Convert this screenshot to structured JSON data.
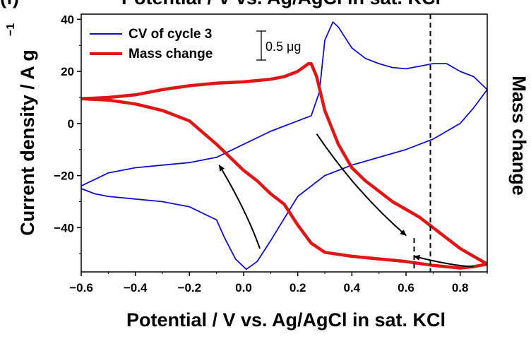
{
  "panel": {
    "label": "(f)",
    "top_title": "Potential / V vs. Ag/AgCl in sat. KCl"
  },
  "chart_data": {
    "type": "line",
    "xlabel": "Potential / V vs. Ag/AgCl in sat. KCl",
    "ylabel": "Current density / A g",
    "ylabel_superscript": "−1",
    "y2label": "Mass change",
    "xlim": [
      -0.6,
      0.9
    ],
    "ylim": [
      -57,
      42
    ],
    "xticks": [
      -0.6,
      -0.4,
      -0.2,
      0.0,
      0.2,
      0.4,
      0.6,
      0.8
    ],
    "xtick_labels": [
      "−0.6",
      "−0.4",
      "−0.2",
      "0.0",
      "0.2",
      "0.4",
      "0.6",
      "0.8"
    ],
    "yticks": [
      -40,
      -20,
      0,
      20,
      40
    ],
    "ytick_labels": [
      "−40",
      "−20",
      "0",
      "20",
      "40"
    ],
    "scale_bar_label": "0.5 μg",
    "legend_position": "top-left",
    "series": [
      {
        "name": "CV of cycle 3",
        "color": "#1010c8",
        "x": [
          -0.6,
          -0.5,
          -0.4,
          -0.3,
          -0.2,
          -0.1,
          0.0,
          0.1,
          0.15,
          0.2,
          0.25,
          0.28,
          0.3,
          0.33,
          0.35,
          0.4,
          0.45,
          0.5,
          0.55,
          0.6,
          0.65,
          0.7,
          0.75,
          0.8,
          0.85,
          0.9,
          0.85,
          0.8,
          0.75,
          0.7,
          0.65,
          0.6,
          0.5,
          0.4,
          0.3,
          0.2,
          0.1,
          0.05,
          0.01,
          -0.03,
          -0.07,
          -0.1,
          -0.2,
          -0.3,
          -0.4,
          -0.5,
          -0.55,
          -0.6
        ],
        "y": [
          -24,
          -19,
          -17,
          -16,
          -15,
          -13,
          -8,
          -3,
          -1,
          1,
          3,
          12,
          32,
          39,
          37,
          29,
          25,
          23,
          21.5,
          21,
          22,
          23,
          23,
          20,
          18,
          13,
          6,
          0,
          -3,
          -6,
          -8,
          -10,
          -13,
          -16,
          -20,
          -28,
          -45,
          -53,
          -56,
          -52,
          -44,
          -37,
          -32,
          -30,
          -29,
          -28,
          -27,
          -25
        ]
      },
      {
        "name": "Mass change",
        "color": "#e01515",
        "x": [
          -0.6,
          -0.5,
          -0.4,
          -0.3,
          -0.2,
          -0.1,
          0.0,
          0.1,
          0.15,
          0.2,
          0.24,
          0.25,
          0.27,
          0.3,
          0.35,
          0.4,
          0.45,
          0.5,
          0.55,
          0.6,
          0.65,
          0.7,
          0.75,
          0.8,
          0.85,
          0.9,
          0.85,
          0.8,
          0.7,
          0.6,
          0.5,
          0.4,
          0.3,
          0.25,
          0.2,
          0.15,
          0.1,
          0.05,
          0.0,
          -0.1,
          -0.2,
          -0.3,
          -0.4,
          -0.5,
          -0.6
        ],
        "y": [
          9.5,
          10,
          11,
          13,
          14.5,
          15.5,
          16,
          17,
          18,
          20,
          23,
          23,
          18,
          5,
          -8,
          -17,
          -22,
          -26,
          -30,
          -33,
          -36,
          -40,
          -44,
          -48,
          -51,
          -54,
          -55,
          -55.5,
          -54.5,
          -53,
          -52,
          -51,
          -49.5,
          -46,
          -39,
          -31,
          -27,
          -22,
          -18,
          -8,
          1,
          5,
          7.5,
          9,
          9.5
        ]
      }
    ],
    "annotations": {
      "vertical_dashed_lines_x": [
        0.69
      ],
      "short_dashed_line": {
        "x": 0.63,
        "y_from": -44,
        "y_to": -57
      },
      "arrows": [
        {
          "from": [
            0.06,
            -48
          ],
          "to": [
            -0.09,
            -16
          ],
          "direction": "up-left"
        },
        {
          "from": [
            0.27,
            -4
          ],
          "to": [
            0.6,
            -43
          ],
          "direction": "down-right"
        },
        {
          "from": [
            0.85,
            -55
          ],
          "to": [
            0.63,
            -51
          ],
          "direction": "left"
        }
      ]
    }
  }
}
